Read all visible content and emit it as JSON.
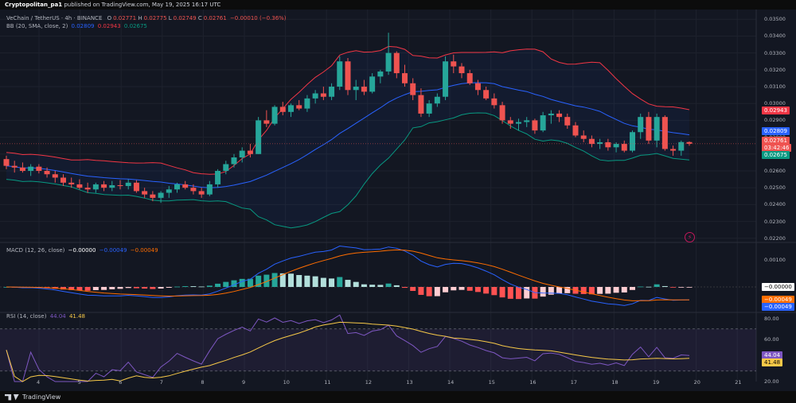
{
  "header": {
    "author": "Cryptopolitan_pa1",
    "published": "published on TradingView.com, May 19, 2025 16:17 UTC"
  },
  "legend": {
    "symbol": "VeChain / TetherUS · 4h · BINANCE",
    "o_label": "O",
    "o_value": "0.02771",
    "h_label": "H",
    "h_value": "0.02775",
    "l_label": "L",
    "l_value": "0.02749",
    "c_label": "C",
    "c_value": "0.02761",
    "change": "−0.00010 (−0.36%)",
    "bb_label": "BB (20, SMA, close, 2)",
    "bb_basis": "0.02809",
    "bb_upper": "0.02943",
    "bb_lower": "0.02675",
    "macd_label": "MACD (12, 26, close)",
    "macd_hist": "−0.00000",
    "macd_line": "−0.00049",
    "macd_signal": "−0.00049",
    "rsi_label": "RSI (14, close)",
    "rsi_value": "44.04",
    "rsi_ma": "41.48"
  },
  "price_axis": [
    "0.03500",
    "0.03400",
    "0.03300",
    "0.03200",
    "0.03100",
    "0.03000",
    "0.02900",
    "0.02800",
    "0.02700",
    "0.02600",
    "0.02500",
    "0.02400",
    "0.02300",
    "0.02200"
  ],
  "price_labels": {
    "upper": "0.02943",
    "basis": "0.02809",
    "last": "0.02761",
    "countdown": "03:42:46",
    "lower": "0.02675"
  },
  "macd_axis": [
    "0.00100"
  ],
  "macd_labels": {
    "hist": "−0.00000",
    "macd": "−0.00049",
    "signal": "−0.00049"
  },
  "rsi_axis": [
    "80.00",
    "60.00",
    "40.00",
    "20.00"
  ],
  "rsi_labels": {
    "rsi": "44.04",
    "ma": "41.48"
  },
  "time_axis": [
    "4",
    "5",
    "6",
    "7",
    "8",
    "9",
    "10",
    "11",
    "12",
    "13",
    "14",
    "15",
    "16",
    "17",
    "18",
    "19",
    "20",
    "21"
  ],
  "footer": {
    "brand": "TradingView"
  },
  "colors": {
    "up": "#26a69a",
    "down": "#ef5350",
    "bb_upper": "#f23645",
    "bb_basis": "#2962ff",
    "bb_lower": "#089981",
    "macd": "#2962ff",
    "signal": "#ff6d00",
    "rsi": "#7e57c2",
    "rsi_ma": "#f7c948"
  },
  "chart_data": {
    "type": "candlestick",
    "timeframe": "4h",
    "x_categories": [
      "4",
      "5",
      "6",
      "7",
      "8",
      "9",
      "10",
      "11",
      "12",
      "13",
      "14",
      "15",
      "16",
      "17",
      "18",
      "19",
      "20",
      "21"
    ],
    "ylim": [
      0.0218,
      0.0352
    ],
    "candles": [
      [
        0.0267,
        0.0269,
        0.0261,
        0.0263
      ],
      [
        0.0263,
        0.0266,
        0.0259,
        0.0262
      ],
      [
        0.0262,
        0.0265,
        0.0259,
        0.026
      ],
      [
        0.026,
        0.0264,
        0.0257,
        0.02625
      ],
      [
        0.02625,
        0.0264,
        0.02585,
        0.026
      ],
      [
        0.026,
        0.0262,
        0.0256,
        0.0258
      ],
      [
        0.0258,
        0.026,
        0.0253,
        0.0256
      ],
      [
        0.0256,
        0.0258,
        0.0251,
        0.0253
      ],
      [
        0.0253,
        0.0256,
        0.025,
        0.0252
      ],
      [
        0.0252,
        0.0255,
        0.0249,
        0.025
      ],
      [
        0.025,
        0.0253,
        0.0247,
        0.0249
      ],
      [
        0.0249,
        0.0253,
        0.0247,
        0.0252
      ],
      [
        0.0252,
        0.0254,
        0.0248,
        0.025
      ],
      [
        0.025,
        0.0254,
        0.0248,
        0.02515
      ],
      [
        0.02515,
        0.02545,
        0.0249,
        0.0251
      ],
      [
        0.0251,
        0.0255,
        0.0249,
        0.0253
      ],
      [
        0.0253,
        0.02545,
        0.0247,
        0.0248
      ],
      [
        0.0248,
        0.025,
        0.0244,
        0.0246
      ],
      [
        0.0246,
        0.0248,
        0.0242,
        0.0244
      ],
      [
        0.0244,
        0.0248,
        0.0241,
        0.0247
      ],
      [
        0.0247,
        0.0251,
        0.0244,
        0.0249
      ],
      [
        0.0249,
        0.0253,
        0.0247,
        0.0252
      ],
      [
        0.0252,
        0.0254,
        0.0249,
        0.025
      ],
      [
        0.025,
        0.0252,
        0.0246,
        0.0248
      ],
      [
        0.0248,
        0.025,
        0.0244,
        0.0246
      ],
      [
        0.0246,
        0.0254,
        0.0245,
        0.0252
      ],
      [
        0.0252,
        0.0261,
        0.025,
        0.026
      ],
      [
        0.026,
        0.0266,
        0.0258,
        0.0264
      ],
      [
        0.0264,
        0.027,
        0.0262,
        0.0268
      ],
      [
        0.0268,
        0.0274,
        0.0265,
        0.0272
      ],
      [
        0.0272,
        0.0276,
        0.0268,
        0.027
      ],
      [
        0.027,
        0.0292,
        0.027,
        0.029
      ],
      [
        0.029,
        0.0296,
        0.0286,
        0.0288
      ],
      [
        0.0288,
        0.0299,
        0.0287,
        0.0298
      ],
      [
        0.0298,
        0.0301,
        0.0293,
        0.0295
      ],
      [
        0.0295,
        0.03,
        0.0292,
        0.0299
      ],
      [
        0.0299,
        0.0302,
        0.0296,
        0.0297
      ],
      [
        0.0297,
        0.0305,
        0.0295,
        0.0303
      ],
      [
        0.0303,
        0.0308,
        0.03,
        0.0306
      ],
      [
        0.0306,
        0.031,
        0.0302,
        0.0304
      ],
      [
        0.0304,
        0.0312,
        0.0302,
        0.031
      ],
      [
        0.031,
        0.0328,
        0.0308,
        0.0325
      ],
      [
        0.0325,
        0.0327,
        0.0305,
        0.0308
      ],
      [
        0.0308,
        0.0314,
        0.0302,
        0.031
      ],
      [
        0.031,
        0.0314,
        0.0305,
        0.0307
      ],
      [
        0.0307,
        0.0318,
        0.0306,
        0.0316
      ],
      [
        0.0316,
        0.032,
        0.0312,
        0.0319
      ],
      [
        0.0319,
        0.0342,
        0.0317,
        0.033
      ],
      [
        0.033,
        0.0331,
        0.0315,
        0.0318
      ],
      [
        0.0318,
        0.0323,
        0.031,
        0.0312
      ],
      [
        0.0312,
        0.0315,
        0.0302,
        0.0305
      ],
      [
        0.0305,
        0.0309,
        0.0292,
        0.0294
      ],
      [
        0.0294,
        0.0302,
        0.0292,
        0.03
      ],
      [
        0.03,
        0.0306,
        0.0298,
        0.0304
      ],
      [
        0.0304,
        0.0328,
        0.0302,
        0.0325
      ],
      [
        0.0325,
        0.0329,
        0.0318,
        0.0322
      ],
      [
        0.0322,
        0.0324,
        0.0315,
        0.0318
      ],
      [
        0.0318,
        0.032,
        0.0311,
        0.0312
      ],
      [
        0.0312,
        0.0314,
        0.0305,
        0.0308
      ],
      [
        0.0308,
        0.031,
        0.0302,
        0.0303
      ],
      [
        0.0303,
        0.0306,
        0.0297,
        0.0299
      ],
      [
        0.0299,
        0.0301,
        0.0288,
        0.029
      ],
      [
        0.029,
        0.0292,
        0.0285,
        0.0288
      ],
      [
        0.0288,
        0.0291,
        0.0284,
        0.0289
      ],
      [
        0.0289,
        0.0292,
        0.0286,
        0.029
      ],
      [
        0.029,
        0.0291,
        0.0282,
        0.0284
      ],
      [
        0.0284,
        0.0295,
        0.0283,
        0.0293
      ],
      [
        0.0293,
        0.0296,
        0.0288,
        0.0294
      ],
      [
        0.0294,
        0.0296,
        0.0289,
        0.0292
      ],
      [
        0.0292,
        0.0294,
        0.0285,
        0.0287
      ],
      [
        0.0287,
        0.0289,
        0.028,
        0.0281
      ],
      [
        0.0281,
        0.0284,
        0.0277,
        0.0279
      ],
      [
        0.0279,
        0.0281,
        0.0274,
        0.0276
      ],
      [
        0.0276,
        0.0279,
        0.0273,
        0.0277
      ],
      [
        0.0277,
        0.0279,
        0.0272,
        0.0274
      ],
      [
        0.0274,
        0.0277,
        0.0271,
        0.0276
      ],
      [
        0.0276,
        0.0278,
        0.0271,
        0.0272
      ],
      [
        0.0272,
        0.0284,
        0.0271,
        0.0283
      ],
      [
        0.0283,
        0.0294,
        0.0279,
        0.0292
      ],
      [
        0.0292,
        0.0295,
        0.0276,
        0.0278
      ],
      [
        0.0278,
        0.0294,
        0.0274,
        0.0292
      ],
      [
        0.0292,
        0.0293,
        0.0272,
        0.0273
      ],
      [
        0.0273,
        0.0275,
        0.0269,
        0.0272
      ],
      [
        0.0272,
        0.0278,
        0.0269,
        0.02771
      ],
      [
        0.02771,
        0.02775,
        0.02749,
        0.02761
      ]
    ],
    "bollinger": {
      "upper": 0.02943,
      "basis": 0.02809,
      "lower": 0.02675
    },
    "macd": {
      "macd": -0.00049,
      "signal": -0.00049,
      "hist": -0.0,
      "axis_tick": 0.001
    },
    "rsi": {
      "value": 44.04,
      "ma": 41.48,
      "bands": [
        70,
        30
      ],
      "ylim": [
        20,
        85
      ]
    }
  }
}
